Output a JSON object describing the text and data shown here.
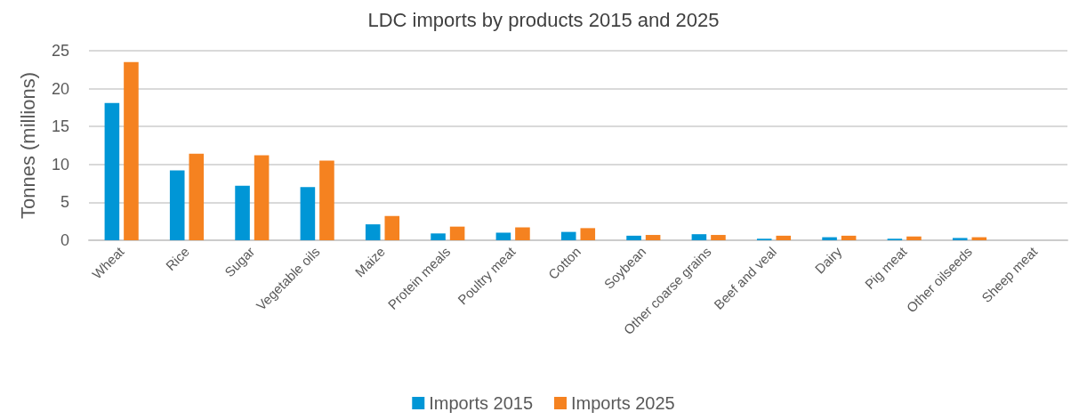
{
  "chart_data": {
    "type": "bar",
    "title": "LDC imports by products 2015 and 2025",
    "ylabel": "Tonnes (millions)",
    "categories": [
      "Wheat",
      "Rice",
      "Sugar",
      "Vegetable oils",
      "Maize",
      "Protein meals",
      "Poultry meat",
      "Cotton",
      "Soybean",
      "Other coarse grains",
      "Beef and veal",
      "Dairy",
      "Pig meat",
      "Other oilseeds",
      "Sheep meat"
    ],
    "series": [
      {
        "name": "Imports 2015",
        "color": "#0096d6",
        "values": [
          18.1,
          9.2,
          7.2,
          7.0,
          2.1,
          0.9,
          1.0,
          1.1,
          0.6,
          0.8,
          0.2,
          0.4,
          0.2,
          0.3,
          null
        ]
      },
      {
        "name": "Imports 2025",
        "color": "#f58220",
        "values": [
          23.5,
          11.4,
          11.2,
          10.5,
          3.2,
          1.8,
          1.7,
          1.6,
          0.7,
          0.7,
          0.6,
          0.6,
          0.5,
          0.4,
          null
        ]
      }
    ],
    "ylim": [
      0,
      25
    ],
    "yticks": [
      0,
      5,
      10,
      15,
      20,
      25
    ],
    "grid": "y",
    "legend": "bottom"
  }
}
